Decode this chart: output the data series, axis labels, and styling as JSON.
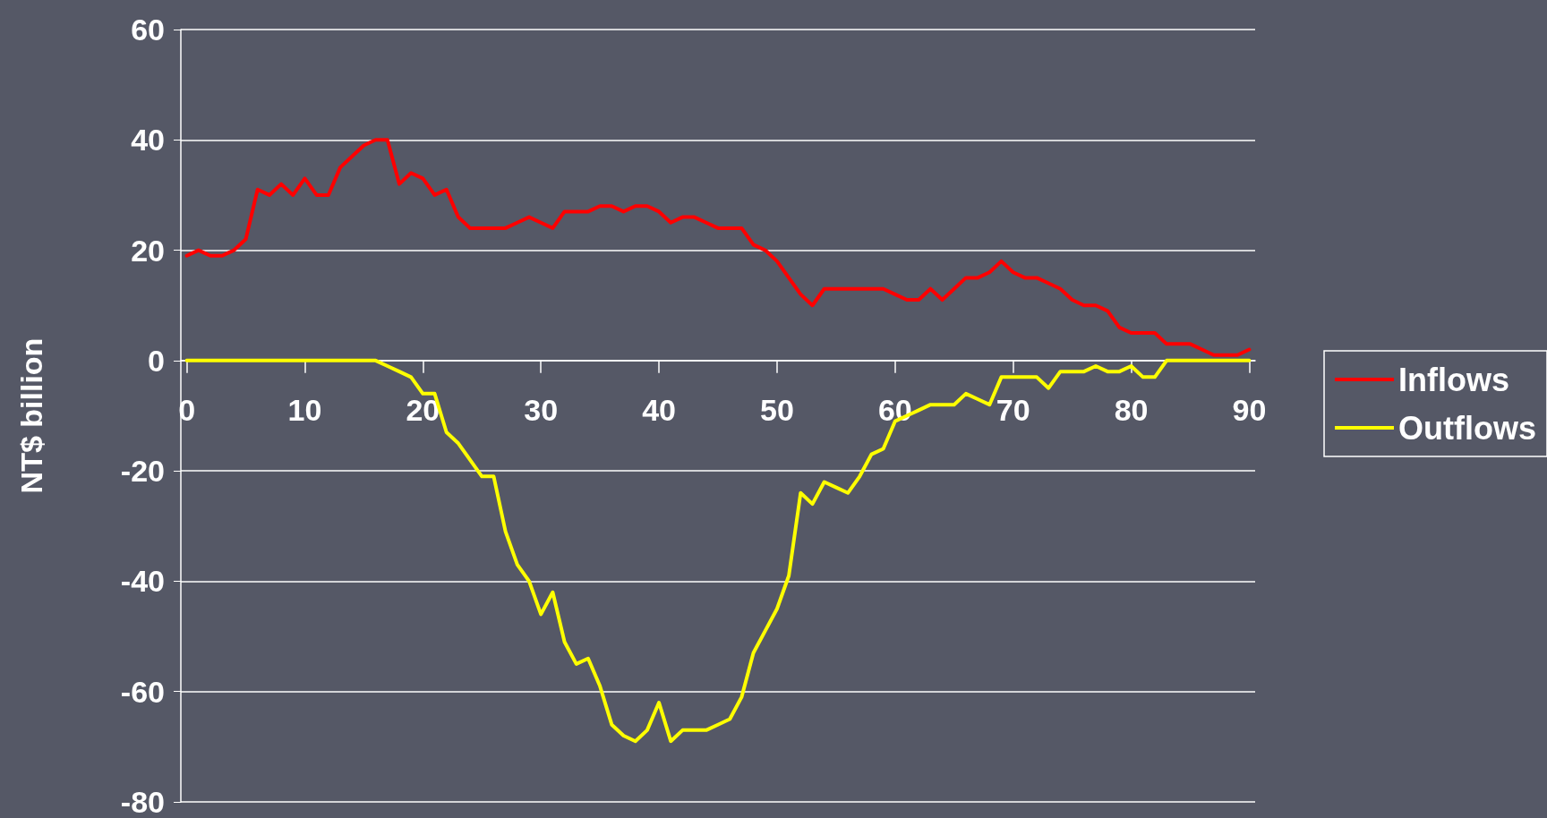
{
  "chart_data": {
    "type": "line",
    "ylabel": "NT$ billion",
    "x": [
      0,
      1,
      2,
      3,
      4,
      5,
      6,
      7,
      8,
      9,
      10,
      11,
      12,
      13,
      14,
      15,
      16,
      17,
      18,
      19,
      20,
      21,
      22,
      23,
      24,
      25,
      26,
      27,
      28,
      29,
      30,
      31,
      32,
      33,
      34,
      35,
      36,
      37,
      38,
      39,
      40,
      41,
      42,
      43,
      44,
      45,
      46,
      47,
      48,
      49,
      50,
      51,
      52,
      53,
      54,
      55,
      56,
      57,
      58,
      59,
      60,
      61,
      62,
      63,
      64,
      65,
      66,
      67,
      68,
      69,
      70,
      71,
      72,
      73,
      74,
      75,
      76,
      77,
      78,
      79,
      80,
      81,
      82,
      83,
      84,
      85,
      86,
      87,
      88,
      89,
      90
    ],
    "series": [
      {
        "name": "Inflows",
        "color": "#ff0000",
        "values": [
          19,
          20,
          19,
          19,
          20,
          22,
          31,
          30,
          32,
          30,
          33,
          30,
          30,
          35,
          37,
          39,
          40,
          40,
          32,
          34,
          33,
          30,
          31,
          26,
          24,
          24,
          24,
          24,
          25,
          26,
          25,
          24,
          27,
          27,
          27,
          28,
          28,
          27,
          28,
          28,
          27,
          25,
          26,
          26,
          25,
          24,
          24,
          24,
          21,
          20,
          18,
          15,
          12,
          10,
          13,
          13,
          13,
          13,
          13,
          13,
          12,
          11,
          11,
          13,
          11,
          13,
          15,
          15,
          16,
          18,
          16,
          15,
          15,
          14,
          13,
          11,
          10,
          10,
          9,
          6,
          5,
          5,
          5,
          3,
          3,
          3,
          2,
          1,
          1,
          1,
          2
        ]
      },
      {
        "name": "Outflows",
        "color": "#ffff00",
        "values": [
          0,
          0,
          0,
          0,
          0,
          0,
          0,
          0,
          0,
          0,
          0,
          0,
          0,
          0,
          0,
          0,
          0,
          -1,
          -2,
          -3,
          -6,
          -6,
          -13,
          -15,
          -18,
          -21,
          -21,
          -31,
          -37,
          -40,
          -46,
          -42,
          -51,
          -55,
          -54,
          -59,
          -66,
          -68,
          -69,
          -67,
          -62,
          -69,
          -67,
          -67,
          -67,
          -66,
          -65,
          -61,
          -53,
          -49,
          -45,
          -39,
          -24,
          -26,
          -22,
          -23,
          -24,
          -21,
          -17,
          -16,
          -11,
          -10,
          -9,
          -8,
          -8,
          -8,
          -6,
          -7,
          -8,
          -3,
          -3,
          -3,
          -3,
          -5,
          -2,
          -2,
          -2,
          -1,
          -2,
          -2,
          -1,
          -3,
          -3,
          0,
          0,
          0,
          0,
          0,
          0,
          0,
          0
        ]
      }
    ],
    "xlim": [
      -0.5,
      90.5
    ],
    "xticks": [
      0,
      10,
      20,
      30,
      40,
      50,
      60,
      70,
      80,
      90
    ],
    "ylim": [
      -80,
      60
    ],
    "yticks": [
      -80,
      -60,
      -40,
      -20,
      0,
      20,
      40,
      60
    ],
    "grid": "y",
    "legend": "right",
    "marker": "none",
    "line_style": "solid"
  }
}
